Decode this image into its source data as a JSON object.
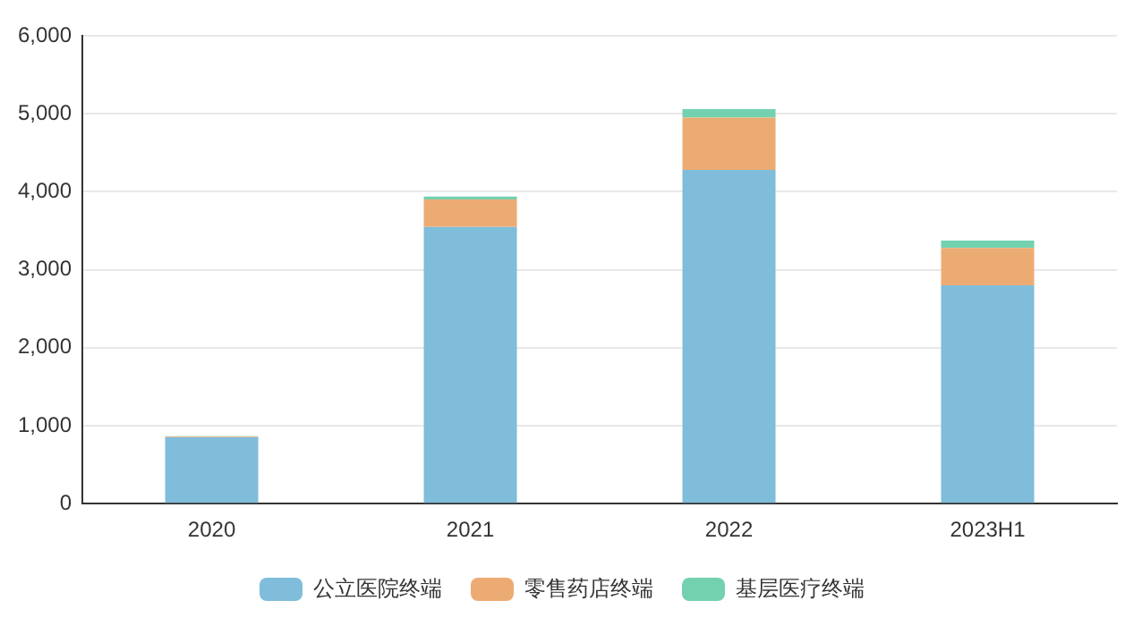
{
  "chart_data": {
    "type": "bar",
    "categories": [
      "2020",
      "2021",
      "2022",
      "2023H1"
    ],
    "stacked": true,
    "series": [
      {
        "name": "公立医院终端",
        "color": "#7fbdda",
        "values": [
          850,
          3550,
          4280,
          2800
        ]
      },
      {
        "name": "零售药店终端",
        "color": "#edab74",
        "values": [
          10,
          350,
          670,
          480
        ]
      },
      {
        "name": "基层医疗终端",
        "color": "#73d1b0",
        "values": [
          5,
          40,
          110,
          95
        ]
      }
    ],
    "ylim": [
      0,
      6000
    ],
    "yticks": [
      {
        "value": 0,
        "label": "0"
      },
      {
        "value": 1000,
        "label": "1,000"
      },
      {
        "value": 2000,
        "label": "2,000"
      },
      {
        "value": 3000,
        "label": "3,000"
      },
      {
        "value": 4000,
        "label": "4,000"
      },
      {
        "value": 5000,
        "label": "5,000"
      },
      {
        "value": 6000,
        "label": "6,000"
      }
    ],
    "grid": "y",
    "legend": "bottom"
  }
}
